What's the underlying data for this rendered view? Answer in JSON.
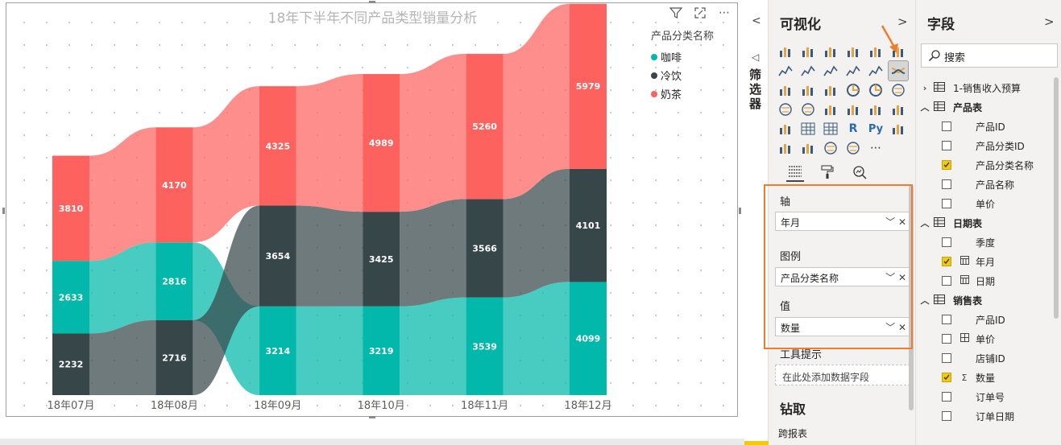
{
  "visual": {
    "title": "18年下半年不同产品类型销量分析",
    "legend_title": "产品分类名称",
    "legend": [
      {
        "name": "咖啡",
        "color": "#01B8AA"
      },
      {
        "name": "冷饮",
        "color": "#374649"
      },
      {
        "name": "奶茶",
        "color": "#FD625E"
      }
    ]
  },
  "chart_data": {
    "type": "ribbon",
    "title": "18年下半年不同产品类型销量分析",
    "categories": [
      "18年07月",
      "18年08月",
      "18年09月",
      "18年10月",
      "18年11月",
      "18年12月"
    ],
    "series": [
      {
        "name": "咖啡",
        "color": "#01B8AA",
        "values": [
          2633,
          2816,
          3214,
          3219,
          3539,
          4099
        ]
      },
      {
        "name": "冷饮",
        "color": "#374649",
        "values": [
          2232,
          2716,
          3654,
          3425,
          3566,
          4101
        ]
      },
      {
        "name": "奶茶",
        "color": "#FD625E",
        "values": [
          3810,
          4170,
          4325,
          4989,
          5260,
          5979
        ]
      }
    ],
    "legend_position": "top-right",
    "data_labels": true,
    "ylim": [
      0,
      14200
    ]
  },
  "filter_pane": {
    "label": "筛选器"
  },
  "viz_pane": {
    "title": "可视化",
    "wells": {
      "axis_label": "轴",
      "axis_field": "年月",
      "legend_label": "图例",
      "legend_field": "产品分类名称",
      "value_label": "值",
      "value_field": "数量",
      "tooltip_label": "工具提示",
      "tooltip_placeholder": "在此处添加数据字段"
    },
    "drill_title": "钻取",
    "cross_report": "跨报表"
  },
  "fields_pane": {
    "title": "字段",
    "search_placeholder": "搜索",
    "items": [
      {
        "kind": "table",
        "label": "1-销售收入预算",
        "expanded": false
      },
      {
        "kind": "table",
        "label": "产品表",
        "expanded": true
      },
      {
        "kind": "field",
        "label": "产品ID",
        "checked": false
      },
      {
        "kind": "field",
        "label": "产品分类ID",
        "checked": false
      },
      {
        "kind": "field",
        "label": "产品分类名称",
        "checked": true
      },
      {
        "kind": "field",
        "label": "产品名称",
        "checked": false
      },
      {
        "kind": "field",
        "label": "单价",
        "checked": false
      },
      {
        "kind": "table",
        "label": "日期表",
        "expanded": true
      },
      {
        "kind": "field",
        "label": "季度",
        "checked": false
      },
      {
        "kind": "field",
        "label": "年月",
        "checked": true,
        "type": "calendar"
      },
      {
        "kind": "field",
        "label": "日期",
        "checked": false,
        "type": "calendar"
      },
      {
        "kind": "table",
        "label": "销售表",
        "expanded": true
      },
      {
        "kind": "field",
        "label": "产品ID",
        "checked": false
      },
      {
        "kind": "field",
        "label": "单价",
        "checked": false,
        "type": "calc"
      },
      {
        "kind": "field",
        "label": "店铺ID",
        "checked": false
      },
      {
        "kind": "field",
        "label": "数量",
        "checked": true,
        "type": "sum"
      },
      {
        "kind": "field",
        "label": "订单号",
        "checked": false
      },
      {
        "kind": "field",
        "label": "订单日期",
        "checked": false
      }
    ]
  }
}
